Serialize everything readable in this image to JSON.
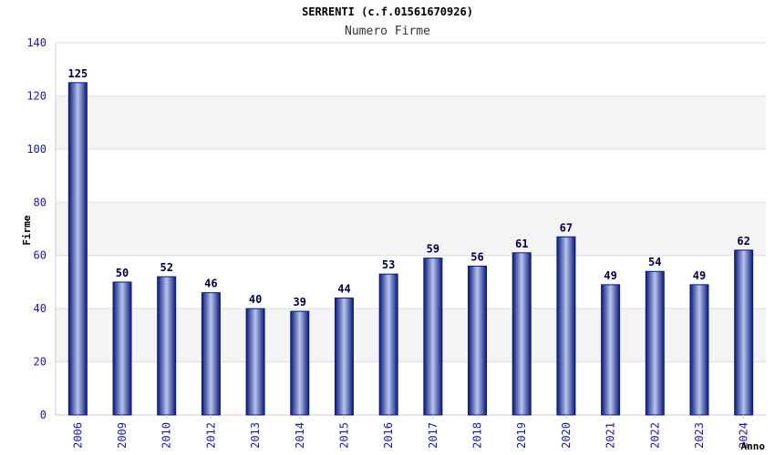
{
  "chart_data": {
    "type": "bar",
    "title": "SERRENTI (c.f.01561670926)",
    "subtitle": "Numero Firme",
    "ylabel": "Firme",
    "xlabel": "Anno",
    "categories": [
      "2006",
      "2009",
      "2010",
      "2012",
      "2013",
      "2014",
      "2015",
      "2016",
      "2017",
      "2018",
      "2019",
      "2020",
      "2021",
      "2022",
      "2023",
      "2024"
    ],
    "values": [
      125,
      50,
      52,
      46,
      40,
      39,
      44,
      53,
      59,
      56,
      61,
      67,
      49,
      54,
      49,
      62
    ],
    "ylim": [
      0,
      140
    ],
    "yticks": [
      0,
      20,
      40,
      60,
      80,
      100,
      120,
      140
    ],
    "grid": true,
    "legend": "none",
    "colors": {
      "bar_dark": "#0a1a7a",
      "bar_light": "#b8c4ee",
      "band": "#f4f4f4",
      "axis": "#cccccc",
      "tick_text": "#1a1aa6"
    }
  }
}
